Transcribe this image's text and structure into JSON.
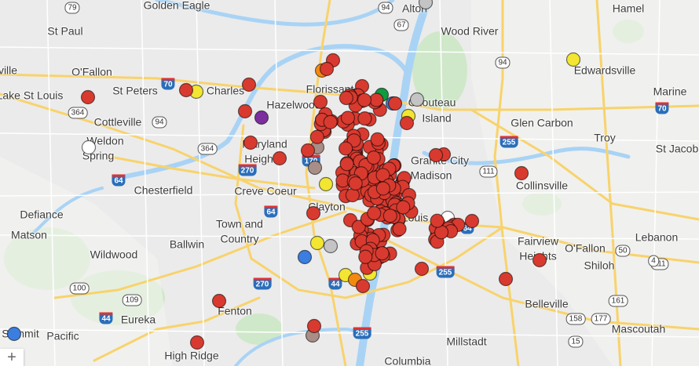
{
  "places": [
    {
      "name": "Golden Eagle"
    },
    {
      "name": "St Paul"
    },
    {
      "name": "O'Fallon"
    },
    {
      "name": "St Peters"
    },
    {
      "name": "Charles"
    },
    {
      "name": "Lake St Louis"
    },
    {
      "name": "Cottleville"
    },
    {
      "name": "Weldon"
    },
    {
      "name": "Spring"
    },
    {
      "name": "Florissant"
    },
    {
      "name": "Hazelwood"
    },
    {
      "name": "Maryland"
    },
    {
      "name": "Heights"
    },
    {
      "name": "Chesterfield"
    },
    {
      "name": "Creve Coeur"
    },
    {
      "name": "Clayton"
    },
    {
      "name": "Town and"
    },
    {
      "name": "Country"
    },
    {
      "name": "Defiance"
    },
    {
      "name": "Matson"
    },
    {
      "name": "Wildwood"
    },
    {
      "name": "Ballwin"
    },
    {
      "name": "Fenton"
    },
    {
      "name": "Eureka"
    },
    {
      "name": "Pacific"
    },
    {
      "name": "High Ridge"
    },
    {
      "name": "Summit"
    },
    {
      "name": "Alton"
    },
    {
      "name": "Wood River"
    },
    {
      "name": "Hamel"
    },
    {
      "name": "Edwardsville"
    },
    {
      "name": "Marine"
    },
    {
      "name": "Chouteau"
    },
    {
      "name": "Island"
    },
    {
      "name": "Glen Carbon"
    },
    {
      "name": "Troy"
    },
    {
      "name": "St Jacob"
    },
    {
      "name": "Granite City"
    },
    {
      "name": "Madison"
    },
    {
      "name": "Collinsville"
    },
    {
      "name": "Lebanon"
    },
    {
      "name": "O'Fallon"
    },
    {
      "name": "Fairview"
    },
    {
      "name": "Heights"
    },
    {
      "name": "Shiloh"
    },
    {
      "name": "Belleville"
    },
    {
      "name": "Mascoutah"
    },
    {
      "name": "Millstadt"
    },
    {
      "name": "St Louis"
    },
    {
      "name": "ville"
    },
    {
      "name": "Columbia"
    }
  ],
  "state_routes": [
    "79",
    "364",
    "94",
    "364",
    "94",
    "111",
    "111",
    "100",
    "109",
    "50",
    "4",
    "158",
    "177",
    "161",
    "15",
    "67",
    "94"
  ],
  "interstates": [
    "70",
    "64",
    "270",
    "170",
    "64",
    "44",
    "270",
    "255",
    "255",
    "44",
    "255",
    "64",
    "70"
  ],
  "marker_colors": {
    "red": "#d93a2f",
    "yellow": "#f2e632",
    "purple": "#7b2f9e",
    "green": "#0f9b3f",
    "gray": "#c4c4c4",
    "white": "#ffffff",
    "blue": "#3b7ee0",
    "orange": "#f28a10",
    "brown": "#a88e86"
  },
  "zoom_control": {
    "zoom_in": "+"
  }
}
